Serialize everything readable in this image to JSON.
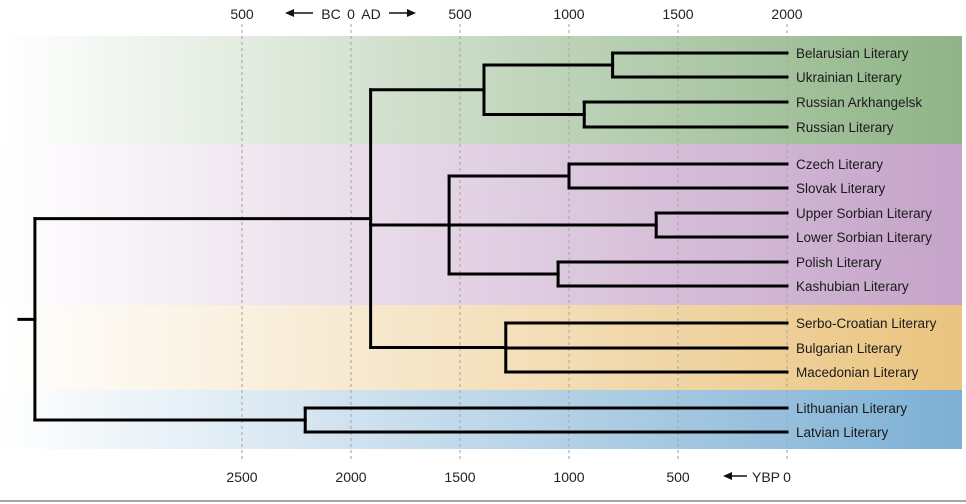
{
  "clades": [
    {
      "id": "east",
      "color": "#8fb486"
    },
    {
      "id": "west",
      "color": "#c4a3c8"
    },
    {
      "id": "south",
      "color": "#eac47f"
    },
    {
      "id": "baltic",
      "color": "#7db0d4"
    }
  ],
  "top_axis": {
    "ticks": [
      {
        "label": "500",
        "year": -500
      },
      {
        "label": "0",
        "year": 0
      },
      {
        "label": "500",
        "year": 500
      },
      {
        "label": "1000",
        "year": 1000
      },
      {
        "label": "1500",
        "year": 1500
      },
      {
        "label": "2000",
        "year": 2000
      }
    ],
    "bc_label": "BC",
    "ad_label": "AD"
  },
  "bottom_axis": {
    "ticks": [
      {
        "label": "2500",
        "ybp": 2500
      },
      {
        "label": "2000",
        "ybp": 2000
      },
      {
        "label": "1500",
        "ybp": 1500
      },
      {
        "label": "1000",
        "ybp": 1000
      },
      {
        "label": "500",
        "ybp": 500
      },
      {
        "label": "0",
        "ybp": 0
      }
    ],
    "ybp_label": "YBP"
  },
  "leaves": [
    {
      "name": "Belarusian Literary"
    },
    {
      "name": "Ukrainian Literary"
    },
    {
      "name": "Russian Arkhangelsk"
    },
    {
      "name": "Russian Literary"
    },
    {
      "name": "Czech Literary"
    },
    {
      "name": "Slovak Literary"
    },
    {
      "name": "Upper Sorbian Literary"
    },
    {
      "name": "Lower Sorbian Literary"
    },
    {
      "name": "Polish Literary"
    },
    {
      "name": "Kashubian Literary"
    },
    {
      "name": "Serbo-Croatian Literary"
    },
    {
      "name": "Bulgarian Literary"
    },
    {
      "name": "Macedonian Literary"
    },
    {
      "name": "Lithuanian Literary"
    },
    {
      "name": "Latvian Literary"
    }
  ],
  "nodes": [
    {
      "id": "n_be_uk",
      "ybp": 800,
      "children": [
        0,
        1
      ]
    },
    {
      "id": "n_ru",
      "ybp": 930,
      "children": [
        2,
        3
      ]
    },
    {
      "id": "n_east",
      "ybp": 1390,
      "children": [
        "n_be_uk",
        "n_ru"
      ]
    },
    {
      "id": "n_cz_sk",
      "ybp": 1000,
      "children": [
        4,
        5
      ]
    },
    {
      "id": "n_sorb",
      "ybp": 600,
      "children": [
        6,
        7
      ]
    },
    {
      "id": "n_pol",
      "ybp": 1050,
      "children": [
        8,
        9
      ]
    },
    {
      "id": "n_west",
      "ybp": 1550,
      "children": [
        "n_cz_sk",
        "n_sorb",
        "n_pol"
      ]
    },
    {
      "id": "n_south",
      "ybp": 1290,
      "children": [
        10,
        11,
        12
      ]
    },
    {
      "id": "n_slavic",
      "ybp": 1910,
      "children": [
        "n_east",
        "n_west",
        "n_south"
      ]
    },
    {
      "id": "n_baltic",
      "ybp": 2210,
      "children": [
        13,
        14
      ]
    },
    {
      "id": "n_root",
      "ybp": 3450,
      "children": [
        "n_slavic",
        "n_baltic"
      ]
    }
  ]
}
